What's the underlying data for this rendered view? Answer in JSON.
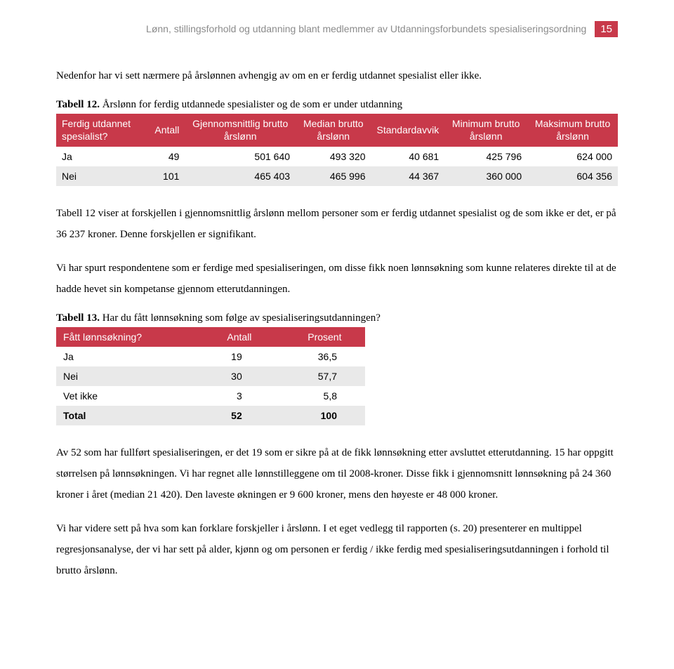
{
  "header": {
    "running_title": "Lønn, stillingsforhold og utdanning blant medlemmer av Utdanningsforbundets spesialiseringsordning",
    "page_number": "15"
  },
  "para1": "Nedenfor har vi sett nærmere på årslønnen avhengig av om en er ferdig utdannet spesialist eller ikke.",
  "table12": {
    "caption_bold": "Tabell 12.",
    "caption_rest": " Årslønn for ferdig utdannede spesialister og de som er under utdanning",
    "columns": [
      "Ferdig utdannet spesialist?",
      "Antall",
      "Gjennomsnittlig brutto årslønn",
      "Median brutto årslønn",
      "Standardavvik",
      "Minimum brutto årslønn",
      "Maksimum brutto årslønn"
    ],
    "rows": [
      [
        "Ja",
        "49",
        "501 640",
        "493 320",
        "40 681",
        "425 796",
        "624 000"
      ],
      [
        "Nei",
        "101",
        "465 403",
        "465 996",
        "44 367",
        "360 000",
        "604 356"
      ]
    ],
    "header_bg": "#c8394a",
    "header_fg": "#ffffff",
    "row_alt_bg": "#e9e9e9"
  },
  "para2": "Tabell 12 viser at forskjellen i gjennomsnittlig årslønn mellom personer som er ferdig utdannet spesialist og de som ikke er det, er på 36 237 kroner. Denne forskjellen er signifikant.",
  "para3": "Vi har spurt respondentene som er ferdige med spesialiseringen, om disse fikk noen lønnsøkning som kunne relateres direkte til at de hadde hevet sin kompetanse gjennom etterutdanningen.",
  "table13": {
    "caption_bold": "Tabell 13.",
    "caption_rest": " Har du fått lønnsøkning som følge av spesialiseringsutdanningen?",
    "columns": [
      "Fått lønnsøkning?",
      "Antall",
      "Prosent"
    ],
    "rows": [
      [
        "Ja",
        "19",
        "36,5"
      ],
      [
        "Nei",
        "30",
        "57,7"
      ],
      [
        "Vet ikke",
        "3",
        "5,8"
      ],
      [
        "Total",
        "52",
        "100"
      ]
    ],
    "header_bg": "#c8394a",
    "header_fg": "#ffffff",
    "row_alt_bg": "#e9e9e9"
  },
  "para4": "Av 52 som har fullført spesialiseringen, er det 19 som er sikre på at de fikk lønnsøkning etter avsluttet etterutdanning. 15 har oppgitt størrelsen på lønnsøkningen. Vi har regnet alle lønnstilleggene om til 2008-kroner. Disse fikk i gjennomsnitt lønnsøkning på 24 360 kroner i året (median 21 420). Den laveste økningen er 9 600 kroner, mens den høyeste er 48 000 kroner.",
  "para5": "Vi har videre sett på hva som kan forklare forskjeller i årslønn. I et eget vedlegg til rapporten (s. 20) presenterer en multippel regresjonsanalyse, der vi har sett på alder, kjønn og om personen er ferdig / ikke ferdig med spesialiseringsutdanningen i forhold til brutto årslønn."
}
